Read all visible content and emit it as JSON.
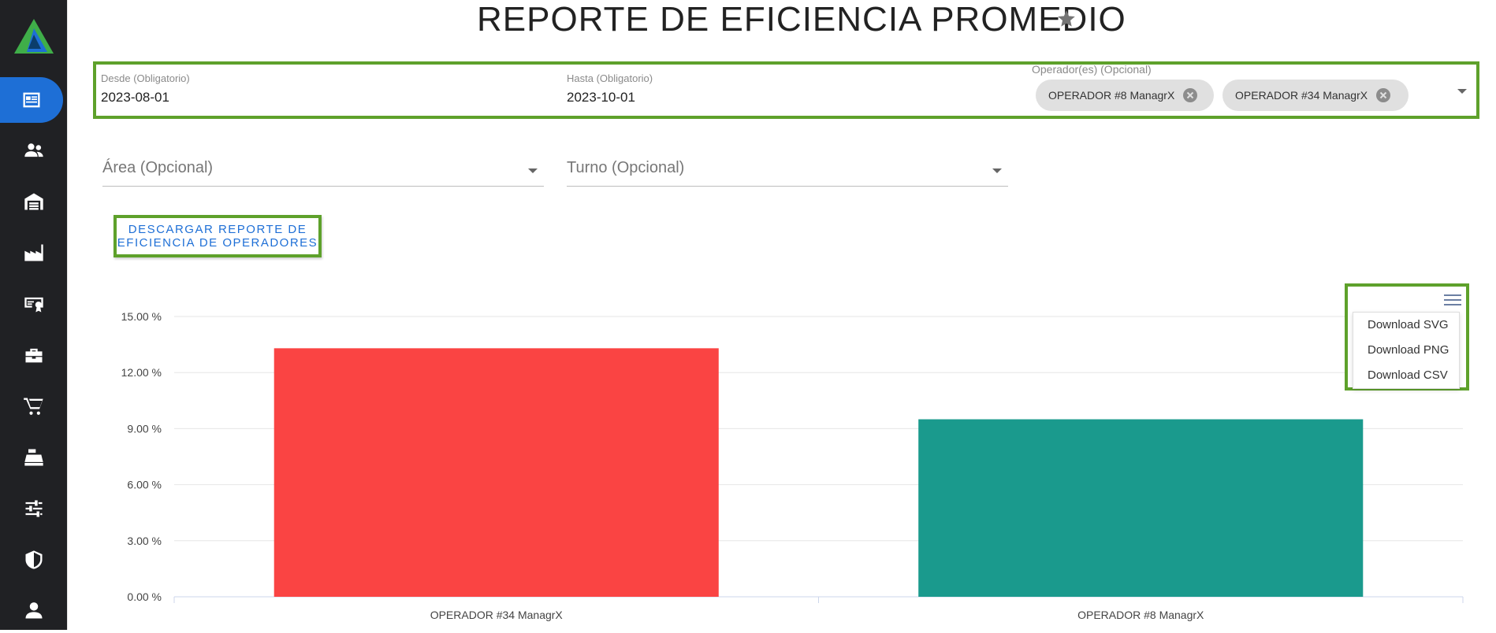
{
  "page": {
    "title": "REPORTE DE EFICIENCIA PROMEDIO"
  },
  "filters": {
    "desde": {
      "label": "Desde (Obligatorio)",
      "value": "2023-08-01"
    },
    "hasta": {
      "label": "Hasta (Obligatorio)",
      "value": "2023-10-01"
    },
    "operadores": {
      "label": "Operador(es) (Opcional)",
      "chips": [
        "OPERADOR #8 ManagrX",
        "OPERADOR #34 ManagrX"
      ]
    },
    "area": {
      "placeholder": "Área (Opcional)"
    },
    "turno": {
      "placeholder": "Turno (Opcional)"
    }
  },
  "actions": {
    "download_report_label": "DESCARGAR REPORTE DE EFICIENCIA DE OPERADORES"
  },
  "chart_menu": {
    "items": [
      "Download SVG",
      "Download PNG",
      "Download CSV"
    ]
  },
  "sidebar": {
    "items": [
      "report-icon",
      "people-icon",
      "warehouse-icon",
      "factory-icon",
      "certificate-icon",
      "toolbox-icon",
      "cart-icon",
      "cash-register-icon",
      "sliders-icon",
      "shield-icon",
      "user-icon"
    ]
  },
  "colors": {
    "accent": "#1e6fd6",
    "highlight_border": "#5ea12b",
    "bar1": "#fa4443",
    "bar2": "#1a9a8d",
    "sidebar": "#202124"
  },
  "chart_data": {
    "type": "bar",
    "categories": [
      "OPERADOR #34 ManagrX",
      "OPERADOR #8 ManagrX"
    ],
    "values": [
      13.3,
      9.5
    ],
    "colors": [
      "#fa4443",
      "#1a9a8d"
    ],
    "ylim": [
      0,
      15
    ],
    "yticks": [
      "0.00 %",
      "3.00 %",
      "6.00 %",
      "9.00 %",
      "12.00 %",
      "15.00 %"
    ],
    "ytick_values": [
      0,
      3,
      6,
      9,
      12,
      15
    ],
    "grid": true
  }
}
